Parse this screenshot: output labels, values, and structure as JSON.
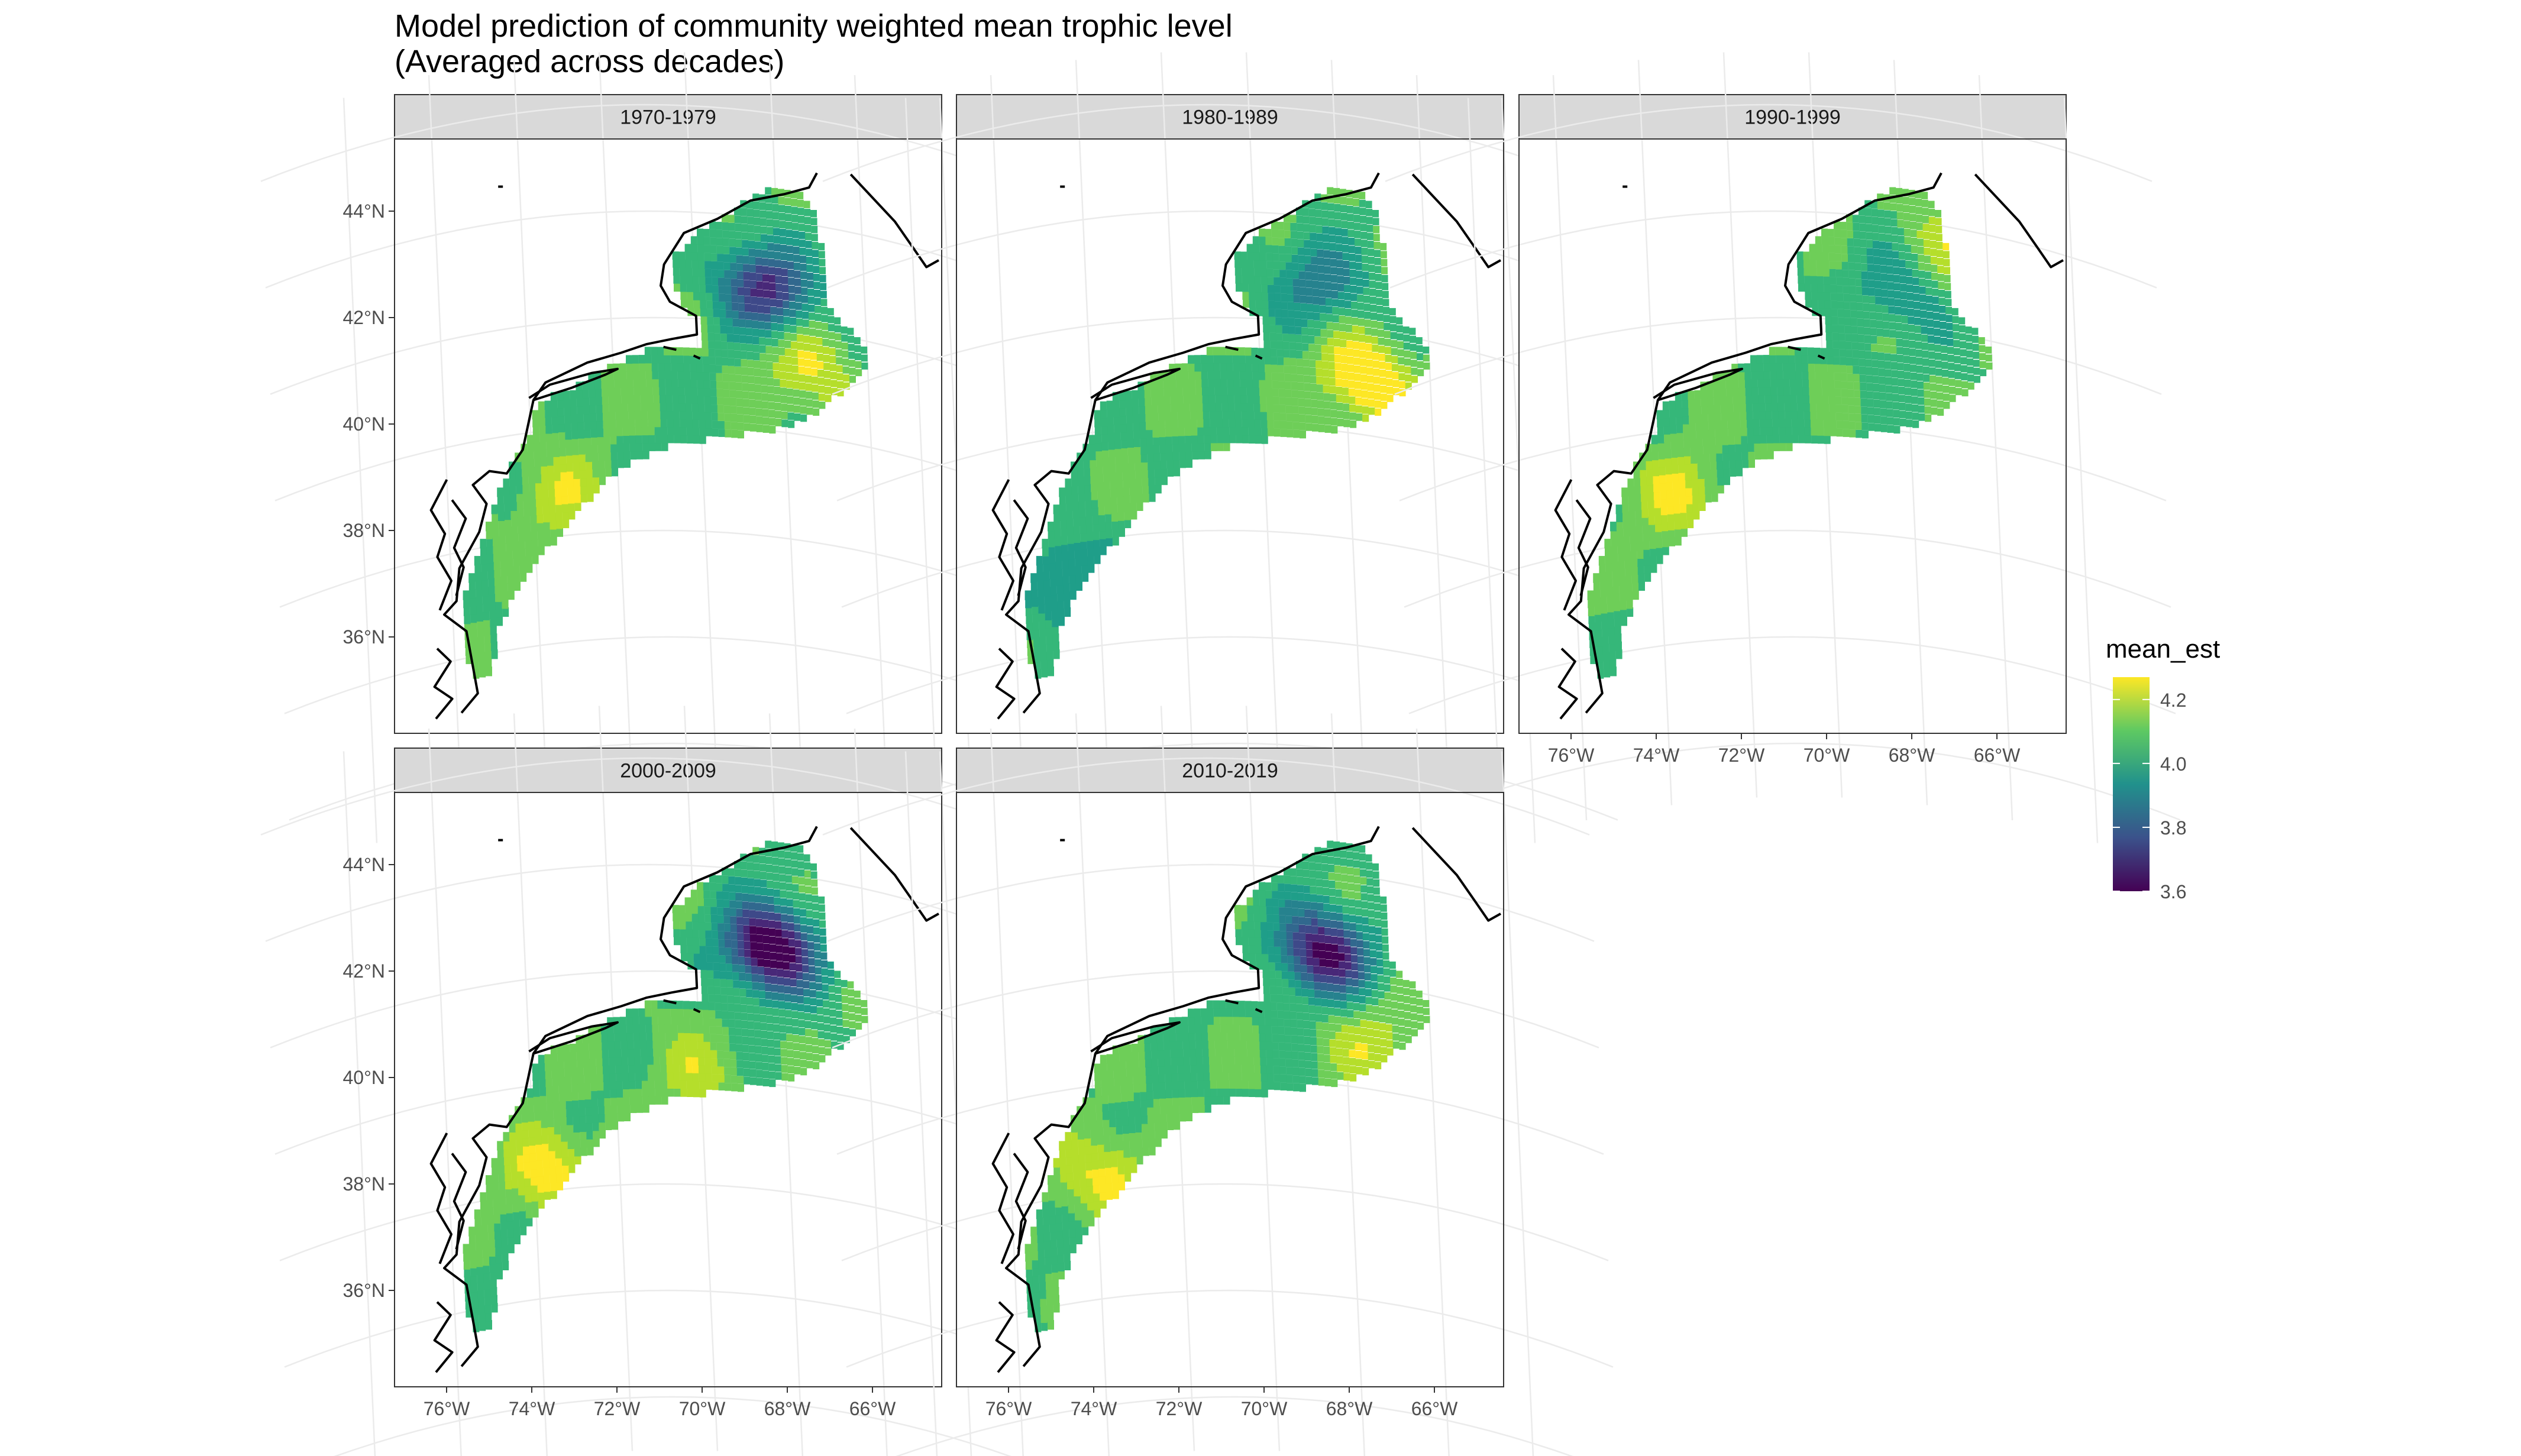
{
  "title": "Model prediction of community weighted mean trophic level",
  "subtitle": "(Averaged across decades)",
  "panels": [
    {
      "label": "1970-1979"
    },
    {
      "label": "1980-1989"
    },
    {
      "label": "1990-1999"
    },
    {
      "label": "2000-2009"
    },
    {
      "label": "2010-2019"
    }
  ],
  "x_ticks": [
    "76°W",
    "74°W",
    "72°W",
    "70°W",
    "68°W",
    "66°W"
  ],
  "y_ticks": [
    "44°N",
    "42°N",
    "40°N",
    "38°N",
    "36°N"
  ],
  "legend": {
    "title": "mean_est",
    "labels": [
      "4.2",
      "4.0",
      "3.8",
      "3.6"
    ],
    "values": [
      4.2,
      4.0,
      3.8,
      3.6
    ],
    "colors": [
      "#440154",
      "#3b528b",
      "#21918c",
      "#5ec962",
      "#fde725"
    ]
  },
  "chart_data": {
    "type": "map",
    "variable": "mean_est",
    "facets": [
      "1970-1979",
      "1980-1989",
      "1990-1999",
      "2000-2009",
      "2010-2019"
    ],
    "lon_ticks": [
      "76°W",
      "74°W",
      "72°W",
      "70°W",
      "68°W",
      "66°W"
    ],
    "lat_ticks": [
      "44°N",
      "42°N",
      "40°N",
      "38°N",
      "36°N"
    ],
    "color_scale": "viridis",
    "color_range": [
      3.6,
      4.25
    ]
  }
}
